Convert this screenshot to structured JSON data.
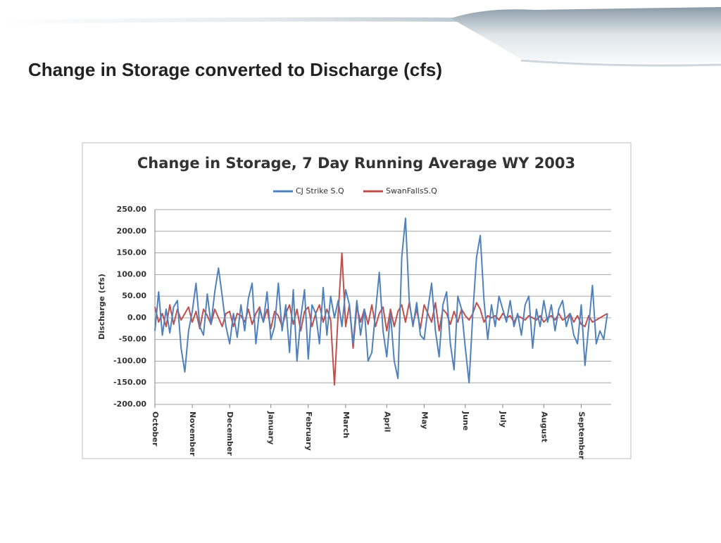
{
  "slide_title": "Change in Storage converted to Discharge (cfs)",
  "chart_data": {
    "type": "line",
    "title": "Change in Storage, 7 Day Running Average WY 2003",
    "y_label": "Discharge (cfs)",
    "categories": [
      "October",
      null,
      null,
      null,
      null,
      null,
      null,
      null,
      null,
      null,
      "November",
      null,
      null,
      null,
      null,
      null,
      null,
      null,
      null,
      null,
      "December",
      null,
      null,
      null,
      null,
      null,
      null,
      null,
      null,
      null,
      null,
      "January",
      null,
      null,
      null,
      null,
      null,
      null,
      null,
      null,
      null,
      "February",
      null,
      null,
      null,
      null,
      null,
      null,
      null,
      null,
      null,
      "March",
      null,
      null,
      null,
      null,
      null,
      null,
      null,
      null,
      null,
      null,
      "April",
      null,
      null,
      null,
      null,
      null,
      null,
      null,
      null,
      null,
      "May",
      null,
      null,
      null,
      null,
      null,
      null,
      null,
      null,
      null,
      null,
      "June",
      null,
      null,
      null,
      null,
      null,
      null,
      null,
      null,
      null,
      "July",
      null,
      null,
      null,
      null,
      null,
      null,
      null,
      null,
      null,
      null,
      "August",
      null,
      null,
      null,
      null,
      null,
      null,
      null,
      null,
      null,
      "September",
      null,
      null,
      null,
      null,
      null,
      null,
      null
    ],
    "series": [
      {
        "name": "CJ Strike S.Q",
        "color": "#4f81bd",
        "values": [
          -30,
          60,
          -40,
          20,
          -35,
          25,
          40,
          -70,
          -125,
          -30,
          15,
          80,
          -20,
          -40,
          55,
          -15,
          60,
          115,
          50,
          -20,
          -60,
          10,
          -45,
          30,
          -30,
          45,
          80,
          -60,
          20,
          -10,
          60,
          -50,
          -20,
          80,
          -30,
          30,
          -80,
          65,
          -100,
          0,
          65,
          -95,
          30,
          10,
          -60,
          70,
          -40,
          50,
          0,
          40,
          -20,
          65,
          30,
          -60,
          40,
          -40,
          20,
          -100,
          -80,
          15,
          105,
          -30,
          -90,
          10,
          -100,
          -140,
          140,
          230,
          40,
          -20,
          35,
          -40,
          -50,
          20,
          80,
          -30,
          -90,
          30,
          60,
          -60,
          -120,
          50,
          20,
          -70,
          -150,
          10,
          140,
          190,
          40,
          -50,
          30,
          -20,
          50,
          20,
          -10,
          40,
          -20,
          10,
          -40,
          30,
          50,
          -70,
          20,
          -20,
          40,
          -10,
          30,
          -30,
          20,
          40,
          -20,
          10,
          -40,
          -60,
          30,
          -110,
          -20,
          75,
          -60,
          -30,
          -50,
          10
        ]
      },
      {
        "name": "SwanFallsS.Q",
        "color": "#c0504d",
        "values": [
          25,
          -10,
          10,
          -20,
          30,
          -15,
          20,
          -5,
          10,
          25,
          -10,
          15,
          -25,
          20,
          5,
          -15,
          20,
          0,
          -20,
          10,
          15,
          -20,
          10,
          5,
          -10,
          20,
          -15,
          10,
          25,
          -10,
          20,
          -25,
          15,
          5,
          -20,
          10,
          30,
          -15,
          20,
          -30,
          15,
          25,
          -20,
          10,
          30,
          -10,
          20,
          -5,
          -155,
          10,
          150,
          -20,
          30,
          -70,
          25,
          -10,
          20,
          -15,
          30,
          -20,
          10,
          25,
          -30,
          20,
          -20,
          15,
          30,
          -10,
          35,
          -15,
          20,
          -25,
          30,
          10,
          -10,
          35,
          -30,
          20,
          10,
          -15,
          15,
          -10,
          20,
          5,
          -5,
          10,
          35,
          20,
          -10,
          5,
          0,
          5,
          -5,
          10,
          0,
          5,
          -10,
          5,
          0,
          -5,
          5,
          0,
          -5,
          5,
          -10,
          0,
          5,
          -5,
          10,
          -5,
          0,
          10,
          -10,
          5,
          -15,
          -20,
          5,
          -10,
          -5,
          0,
          5,
          10
        ]
      }
    ],
    "ylim": [
      -200,
      250
    ],
    "yticks": [
      {
        "value": -200,
        "label": "-200.00"
      },
      {
        "value": -150,
        "label": "-150.00"
      },
      {
        "value": -100,
        "label": "-100.00"
      },
      {
        "value": -50,
        "label": "-50.00"
      },
      {
        "value": 0,
        "label": "0.00"
      },
      {
        "value": 50,
        "label": "50.00"
      },
      {
        "value": 100,
        "label": "100.00"
      },
      {
        "value": 150,
        "label": "150.00"
      },
      {
        "value": 200,
        "label": "200.00"
      },
      {
        "value": 250,
        "label": "250.00"
      }
    ],
    "grid": true,
    "legend": "top"
  }
}
